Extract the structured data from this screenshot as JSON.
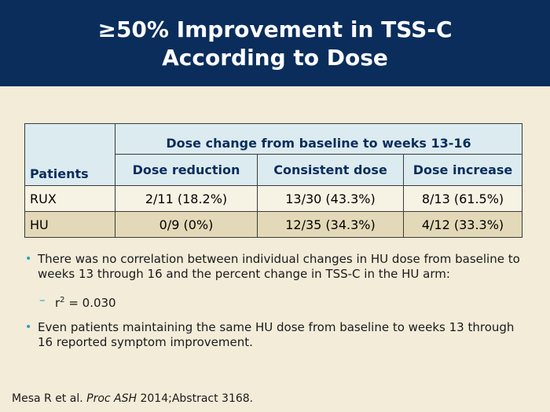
{
  "header": {
    "title_line1": "≥50% Improvement in TSS-C",
    "title_line2": "According to Dose"
  },
  "table": {
    "group_header": "Dose change from baseline to weeks 13-16",
    "col_patients": "Patients",
    "columns": [
      "Dose reduction",
      "Consistent dose",
      "Dose increase"
    ],
    "rows": [
      {
        "label": "RUX",
        "values": [
          "2/11 (18.2%)",
          "13/30 (43.3%)",
          "8/13 (61.5%)"
        ]
      },
      {
        "label": "HU",
        "values": [
          "0/9 (0%)",
          "12/35 (34.3%)",
          "4/12 (33.3%)"
        ]
      }
    ]
  },
  "bullets": {
    "b1": "There was no correlation between individual changes in HU dose from baseline to weeks 13 through 16 and the percent change in TSS-C in the HU arm:",
    "sub_r": "r",
    "sub_sup": "2",
    "sub_rest": " = 0.030",
    "b2": "Even patients maintaining the same HU dose from baseline to weeks 13 through 16 reported symptom improvement."
  },
  "citation": {
    "pre": "Mesa R et al. ",
    "journal": "Proc ASH",
    "post": " 2014;Abstract 3168."
  }
}
